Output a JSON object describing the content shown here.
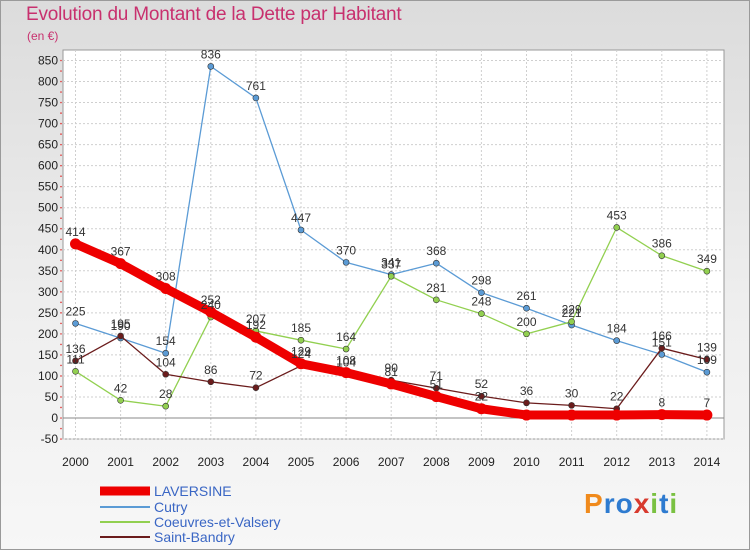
{
  "header": {
    "title": "Evolution du Montant de la Dette par Habitant",
    "subtitle": "(en €)"
  },
  "logo": {
    "text": "Proxiti",
    "colors": [
      "#f08a1c",
      "#2e7bd0",
      "#7ac142",
      "#d83a2e"
    ]
  },
  "chart_data": {
    "type": "line",
    "title": "Evolution du Montant de la Dette par Habitant",
    "ylabel": "(en €)",
    "ylim": [
      -50,
      850
    ],
    "yticks": [
      -50,
      0,
      50,
      100,
      150,
      200,
      250,
      300,
      350,
      400,
      450,
      500,
      550,
      600,
      650,
      700,
      750,
      800,
      850
    ],
    "x": [
      2000,
      2001,
      2002,
      2003,
      2004,
      2005,
      2006,
      2007,
      2008,
      2009,
      2010,
      2011,
      2012,
      2013,
      2014
    ],
    "grid": true,
    "legend_position": "bottom-left",
    "series": [
      {
        "name": "LAVERSINE",
        "color": "#ee0000",
        "width": 9,
        "values": [
          414,
          367,
          308,
          252,
          192,
          129,
          108,
          81,
          51,
          22,
          7,
          7,
          7,
          8,
          7
        ],
        "labels": [
          "414",
          "367",
          "308",
          "252",
          "192",
          "129",
          "108",
          "81",
          "51",
          "22",
          "",
          "",
          "",
          "8",
          "7"
        ]
      },
      {
        "name": "Cutry",
        "color": "#5b9bd5",
        "width": 1.3,
        "values": [
          225,
          190,
          154,
          836,
          761,
          447,
          370,
          341,
          368,
          298,
          261,
          221,
          184,
          151,
          109
        ],
        "labels": [
          "225",
          "190",
          "154",
          "836",
          "761",
          "447",
          "370",
          "341",
          "368",
          "298",
          "261",
          "221",
          "184",
          "151",
          "109"
        ]
      },
      {
        "name": "Coeuvres-et-Valsery",
        "color": "#92d050",
        "width": 1.3,
        "values": [
          111,
          42,
          28,
          240,
          207,
          185,
          164,
          337,
          281,
          248,
          200,
          229,
          453,
          386,
          349
        ],
        "labels": [
          "111",
          "42",
          "28",
          "240",
          "207",
          "185",
          "164",
          "337",
          "281",
          "248",
          "200",
          "229",
          "453",
          "386",
          "349"
        ]
      },
      {
        "name": "Saint-Bandry",
        "color": "#6b1c1c",
        "width": 1.3,
        "values": [
          136,
          195,
          104,
          86,
          72,
          124,
          104,
          90,
          71,
          52,
          36,
          30,
          22,
          166,
          139
        ],
        "labels": [
          "136",
          "195",
          "104",
          "86",
          "72",
          "124",
          "104",
          "90",
          "71",
          "52",
          "36",
          "30",
          "22",
          "166",
          "139"
        ]
      }
    ]
  }
}
